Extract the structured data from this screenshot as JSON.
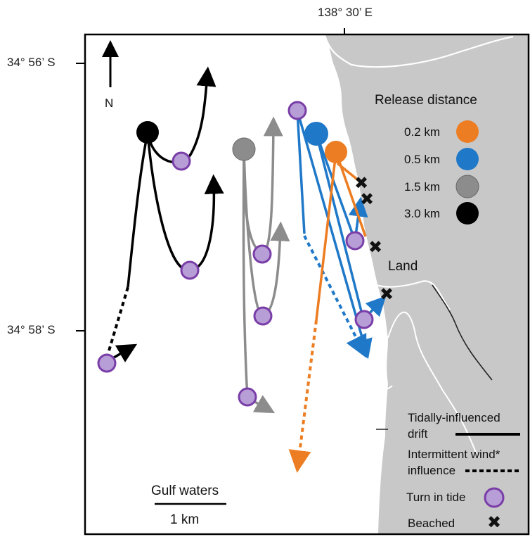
{
  "coordinates": {
    "lon_label": "138° 30’ E",
    "lat_top_label": "34° 56’ S",
    "lat_bottom_label": "34° 58’ S"
  },
  "north_arrow": {
    "label": "N"
  },
  "legend_release": {
    "title": "Release distance",
    "items": [
      {
        "label": "0.2 km",
        "color": "#ED7D22"
      },
      {
        "label": "0.5 km",
        "color": "#1F78C8"
      },
      {
        "label": "1.5 km",
        "color": "#8C8C8C"
      },
      {
        "label": "3.0 km",
        "color": "#000000"
      }
    ]
  },
  "land_label": "Land",
  "water_label": "Gulf waters",
  "scale_bar": {
    "label": "1 km"
  },
  "legend_symbols": {
    "tidal_line1": "Tidally-influenced",
    "tidal_line2": "drift",
    "wind_line1": "Intermittent  wind*",
    "wind_line2": "influence",
    "turn_label": "Turn  in tide",
    "beached_label": "Beached"
  },
  "colors": {
    "land": "#C8C8C8",
    "turn_fill": "#B79ED6",
    "turn_stroke": "#7A3EA8",
    "orange": "#ED7D22",
    "blue": "#1F78C8",
    "gray": "#8C8C8C",
    "black": "#000000"
  }
}
